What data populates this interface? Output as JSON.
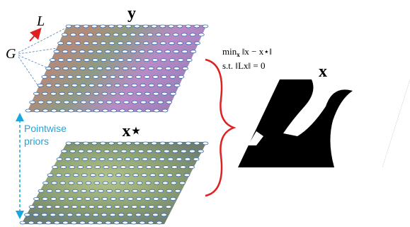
{
  "top_layer": {
    "label": "y"
  },
  "bottom_layer": {
    "label": "x⋆"
  },
  "lattice_direction": "L",
  "graph": "G",
  "annotation": {
    "lines": [
      "Pointwise",
      "priors"
    ]
  },
  "optimization": {
    "objective": "min",
    "objective_subscript": "x",
    "objective_expr": "‖x − x⋆‖",
    "constraint": "s.t. ‖Lx‖ = 0"
  },
  "output": {
    "label": "x"
  }
}
